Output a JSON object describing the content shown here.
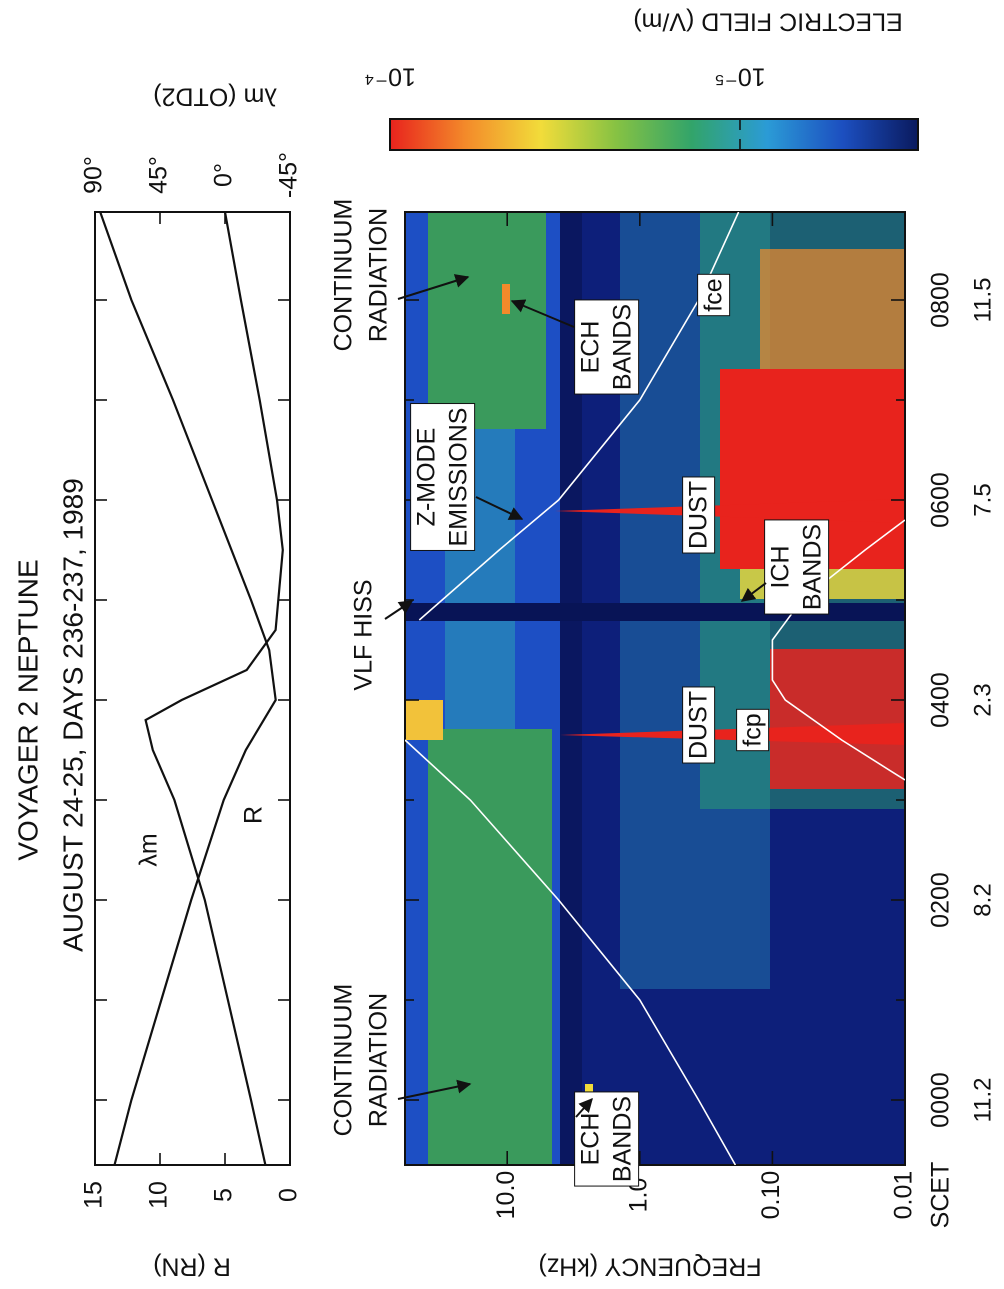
{
  "chart_data": [
    {
      "type": "line",
      "title": "VOYAGER 2  NEPTUNE",
      "subtitle": "AUGUST 24-25, DAYS 236-237, 1989",
      "ylabel": "R (RN)",
      "y2label": "λm (OTD2)",
      "xlim": [
        -0.65,
        8.88
      ],
      "xticks": [
        0,
        1,
        2,
        3,
        4,
        5,
        6,
        7,
        8
      ],
      "ylim": [
        0,
        15
      ],
      "yticks": [
        0,
        5,
        10,
        15
      ],
      "y2lim": [
        -45,
        90
      ],
      "y2ticks": [
        {
          "value": 90,
          "label": "90°"
        },
        {
          "value": 45,
          "label": "45°"
        },
        {
          "value": 0,
          "label": "0°"
        },
        {
          "value": -45,
          "label": "-45°"
        }
      ],
      "series": [
        {
          "name": "R",
          "color": "#111111",
          "x": [
            -0.65,
            0,
            1,
            2,
            3,
            3.5,
            4,
            4.5,
            5,
            6,
            7,
            8,
            8.88
          ],
          "values": [
            13.5,
            12.2,
            9.9,
            7.6,
            5.1,
            3.4,
            1.1,
            1.6,
            3.0,
            6.0,
            9.0,
            12.2,
            14.6
          ]
        },
        {
          "name": "λm",
          "color": "#111111",
          "axis": "y2",
          "x": [
            -0.65,
            0,
            1,
            2,
            3,
            3.5,
            3.8,
            4.0,
            4.3,
            4.7,
            5.5,
            6,
            7,
            8,
            8.88
          ],
          "values": [
            -28,
            -18,
            -2,
            14,
            35,
            50,
            55,
            30,
            -15,
            -35,
            -40,
            -36,
            -24,
            -11,
            0
          ]
        }
      ]
    },
    {
      "type": "spectrogram",
      "xlabel": "SCET",
      "xlim": [
        -0.65,
        8.88
      ],
      "xticks": [
        {
          "value": 0,
          "label": "0000"
        },
        {
          "value": 2,
          "label": "0200"
        },
        {
          "value": 4,
          "label": "0400"
        },
        {
          "value": 6,
          "label": "0600"
        },
        {
          "value": 8,
          "label": "0800"
        }
      ],
      "xminor": [
        1,
        3,
        5,
        7
      ],
      "x2labels": [
        11.2,
        8.2,
        2.3,
        7.5,
        11.5
      ],
      "ylabel": "FREQUENCY (kHz)",
      "ylog": true,
      "ylim": [
        0.01,
        59
      ],
      "yticks": [
        {
          "value": 0.01,
          "label": "0.01"
        },
        {
          "value": 0.1,
          "label": "0.10"
        },
        {
          "value": 1,
          "label": "1.0"
        },
        {
          "value": 10,
          "label": "10.0"
        }
      ],
      "series": [
        {
          "name": "fce",
          "color": "#ffffff",
          "x": [
            -0.65,
            0,
            1,
            2,
            3,
            3.6,
            4.2,
            4.8,
            5.5,
            6,
            7,
            8,
            8.88
          ],
          "values": [
            0.19,
            0.36,
            1.0,
            4.1,
            19,
            59,
            null,
            46,
            11.5,
            4.1,
            1.0,
            0.36,
            0.18
          ]
        },
        {
          "name": "fcp",
          "color": "#ffffff",
          "x": [
            3.2,
            3.6,
            4.0,
            4.2,
            4.6,
            5.0,
            5.5,
            5.8
          ],
          "values": [
            0.01,
            0.03,
            0.08,
            0.1,
            0.1,
            0.06,
            0.02,
            0.01
          ]
        }
      ],
      "annotations": [
        {
          "lines": [
            "CONTINUUM",
            "RADIATION"
          ]
        },
        {
          "lines": [
            "VLF HISS"
          ]
        },
        {
          "lines": [
            "Z-MODE",
            "EMISSIONS"
          ]
        },
        {
          "lines": [
            "CONTINUUM",
            "RADIATION"
          ]
        },
        {
          "lines": [
            "ECH",
            "BANDS"
          ]
        },
        {
          "lines": [
            "ECH",
            "BANDS"
          ]
        },
        {
          "lines": [
            "DUST"
          ]
        },
        {
          "lines": [
            "DUST"
          ]
        },
        {
          "lines": [
            "ICH",
            "BANDS"
          ]
        }
      ]
    },
    {
      "type": "colorbar",
      "label": "ELECTRIC FIELD (V/m)",
      "log": true,
      "clim": [
        3.1e-06,
        0.0001
      ],
      "cticks": [
        {
          "value": 0.0001,
          "label": "10⁻⁴"
        },
        {
          "value": 1e-05,
          "label": "10⁻⁵"
        }
      ],
      "colors": [
        "#e8231d",
        "#f38a2a",
        "#f2dc3a",
        "#86c243",
        "#32a46a",
        "#2b9bd6",
        "#1c4fc0",
        "#0a1a5e"
      ]
    }
  ]
}
